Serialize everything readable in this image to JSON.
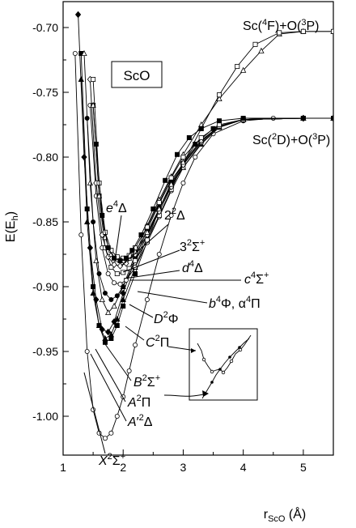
{
  "chart_data": {
    "type": "line",
    "title": "ScO",
    "xlabel": "r_ScO (Å)",
    "xlabel_main": "r",
    "xlabel_sub": "ScO",
    "xlabel_unit": " (Å)",
    "ylabel": "E(E_h)",
    "ylabel_main": "E(E",
    "ylabel_sub": "h",
    "ylabel_close": ")",
    "xlim": [
      1.0,
      5.5
    ],
    "ylim": [
      -1.03,
      -0.68
    ],
    "xticks": [
      1,
      2,
      3,
      4,
      5
    ],
    "yticks": [
      -1.0,
      -0.95,
      -0.9,
      -0.85,
      -0.8,
      -0.75,
      -0.7
    ],
    "xtick_labels": [
      "1",
      "2",
      "3",
      "4",
      "5"
    ],
    "ytick_labels": [
      "-1.00",
      "-0.95",
      "-0.90",
      "-0.85",
      "-0.80",
      "-0.75",
      "-0.70"
    ],
    "grid": false,
    "asymptote_labels": {
      "upper": "Sc(4F)+O(3P)",
      "lower": "Sc(2D)+O(3P)"
    },
    "state_labels": [
      "e4Δ",
      "22Δ",
      "32Σ+",
      "d4Δ",
      "c4Σ+",
      "b4Φ, a4Π",
      "D2Φ",
      "C2Π",
      "B2Σ+",
      "A2Π",
      "A′2Δ",
      "X2Σ+"
    ],
    "series": [
      {
        "name": "X2Σ+",
        "marker": "circle-open",
        "x": [
          1.2,
          1.3,
          1.4,
          1.5,
          1.6,
          1.7,
          1.8,
          1.9,
          2.0,
          2.1,
          2.2,
          2.4,
          2.6,
          2.8,
          3.0,
          3.2,
          3.5,
          4.0,
          4.5,
          5.0,
          5.5
        ],
        "y": [
          -0.72,
          -0.86,
          -0.95,
          -0.995,
          -1.013,
          -1.017,
          -1.013,
          -1.0,
          -0.985,
          -0.965,
          -0.945,
          -0.91,
          -0.875,
          -0.845,
          -0.82,
          -0.8,
          -0.782,
          -0.772,
          -0.77,
          -0.77,
          -0.77
        ]
      },
      {
        "name": "A′2Δ",
        "marker": "square-filled",
        "x": [
          1.3,
          1.4,
          1.5,
          1.6,
          1.7,
          1.8,
          1.9,
          2.0,
          2.2,
          2.4,
          2.6,
          2.8,
          3.0,
          3.2,
          3.5,
          4.0,
          5.0,
          5.5
        ],
        "y": [
          -0.72,
          -0.84,
          -0.9,
          -0.93,
          -0.943,
          -0.94,
          -0.93,
          -0.915,
          -0.89,
          -0.865,
          -0.84,
          -0.82,
          -0.805,
          -0.79,
          -0.778,
          -0.771,
          -0.77,
          -0.77
        ]
      },
      {
        "name": "A2Π",
        "marker": "triangle-filled",
        "x": [
          1.3,
          1.4,
          1.5,
          1.6,
          1.7,
          1.8,
          1.9,
          2.0,
          2.2,
          2.4,
          2.6,
          2.8,
          3.0,
          3.3,
          3.6,
          4.0,
          5.0,
          5.5
        ],
        "y": [
          -0.74,
          -0.85,
          -0.905,
          -0.93,
          -0.94,
          -0.937,
          -0.925,
          -0.91,
          -0.885,
          -0.862,
          -0.84,
          -0.822,
          -0.808,
          -0.79,
          -0.777,
          -0.771,
          -0.77,
          -0.77
        ]
      },
      {
        "name": "B2Σ+",
        "marker": "diamond-filled",
        "x": [
          1.25,
          1.35,
          1.45,
          1.55,
          1.65,
          1.75,
          1.85,
          2.0,
          2.2,
          2.4,
          2.6,
          2.8,
          3.0,
          3.3,
          3.6,
          4.0,
          5.0,
          5.5
        ],
        "y": [
          -0.69,
          -0.8,
          -0.87,
          -0.91,
          -0.933,
          -0.935,
          -0.927,
          -0.905,
          -0.878,
          -0.856,
          -0.836,
          -0.818,
          -0.805,
          -0.788,
          -0.776,
          -0.771,
          -0.77,
          -0.77
        ]
      },
      {
        "name": "C2Π",
        "marker": "triangle-open",
        "x": [
          1.35,
          1.45,
          1.55,
          1.65,
          1.75,
          1.85,
          2.0,
          2.2,
          2.4,
          2.6,
          2.8,
          3.0,
          3.3,
          3.6,
          4.0,
          4.3,
          4.6,
          5.0,
          5.5
        ],
        "y": [
          -0.72,
          -0.82,
          -0.88,
          -0.91,
          -0.92,
          -0.915,
          -0.9,
          -0.875,
          -0.853,
          -0.833,
          -0.815,
          -0.798,
          -0.775,
          -0.755,
          -0.733,
          -0.718,
          -0.705,
          -0.703,
          -0.703
        ]
      },
      {
        "name": "D2Φ",
        "marker": "circle-filled",
        "x": [
          1.4,
          1.5,
          1.6,
          1.7,
          1.8,
          1.9,
          2.0,
          2.2,
          2.4,
          2.6,
          2.8,
          3.0,
          3.3,
          3.6,
          4.0,
          5.0,
          5.5
        ],
        "y": [
          -0.77,
          -0.85,
          -0.89,
          -0.905,
          -0.91,
          -0.907,
          -0.9,
          -0.88,
          -0.86,
          -0.84,
          -0.822,
          -0.806,
          -0.788,
          -0.776,
          -0.771,
          -0.77,
          -0.77
        ]
      },
      {
        "name": "b4Φ, a4Π",
        "marker": "circle-open",
        "x": [
          1.45,
          1.55,
          1.65,
          1.75,
          1.85,
          1.95,
          2.05,
          2.2,
          2.4,
          2.6,
          2.8,
          3.0,
          3.3,
          3.6,
          4.0,
          5.0,
          5.5
        ],
        "y": [
          -0.76,
          -0.83,
          -0.87,
          -0.89,
          -0.897,
          -0.898,
          -0.895,
          -0.885,
          -0.866,
          -0.846,
          -0.826,
          -0.808,
          -0.789,
          -0.777,
          -0.771,
          -0.77,
          -0.77
        ]
      },
      {
        "name": "c4Σ+",
        "marker": "square-open",
        "x": [
          1.5,
          1.6,
          1.7,
          1.8,
          1.9,
          2.0,
          2.1,
          2.2,
          2.4,
          2.6,
          2.8,
          3.0,
          3.3,
          3.6,
          3.9,
          4.2,
          4.6,
          5.0,
          5.5
        ],
        "y": [
          -0.76,
          -0.83,
          -0.87,
          -0.885,
          -0.89,
          -0.889,
          -0.886,
          -0.88,
          -0.864,
          -0.845,
          -0.825,
          -0.805,
          -0.778,
          -0.752,
          -0.73,
          -0.713,
          -0.704,
          -0.703,
          -0.703
        ]
      },
      {
        "name": "d4Δ",
        "marker": "diamond-open",
        "x": [
          1.45,
          1.55,
          1.65,
          1.75,
          1.85,
          1.95,
          2.05,
          2.2,
          2.4,
          2.6,
          2.8,
          3.0,
          3.3,
          3.6,
          4.0,
          5.0,
          5.5
        ],
        "y": [
          -0.74,
          -0.82,
          -0.86,
          -0.877,
          -0.883,
          -0.884,
          -0.882,
          -0.875,
          -0.86,
          -0.842,
          -0.823,
          -0.806,
          -0.788,
          -0.776,
          -0.771,
          -0.77,
          -0.77
        ]
      },
      {
        "name": "32Σ+",
        "marker": "triangle-open",
        "x": [
          1.5,
          1.6,
          1.7,
          1.8,
          1.9,
          2.0,
          2.1,
          2.2,
          2.4,
          2.6,
          2.8,
          3.0,
          3.3,
          3.6,
          4.0,
          5.0,
          5.5
        ],
        "y": [
          -0.76,
          -0.83,
          -0.862,
          -0.875,
          -0.879,
          -0.88,
          -0.878,
          -0.873,
          -0.858,
          -0.84,
          -0.821,
          -0.804,
          -0.787,
          -0.776,
          -0.771,
          -0.77,
          -0.77
        ]
      },
      {
        "name": "22Δ",
        "marker": "square-open",
        "x": [
          1.5,
          1.6,
          1.7,
          1.8,
          1.9,
          2.0,
          2.1,
          2.2,
          2.4,
          2.6,
          2.8,
          3.0,
          3.3,
          3.6,
          4.0,
          5.0,
          5.5
        ],
        "y": [
          -0.74,
          -0.82,
          -0.858,
          -0.872,
          -0.877,
          -0.878,
          -0.876,
          -0.87,
          -0.854,
          -0.835,
          -0.816,
          -0.8,
          -0.785,
          -0.775,
          -0.771,
          -0.77,
          -0.77
        ]
      },
      {
        "name": "e4Δ",
        "marker": "square-filled",
        "x": [
          1.55,
          1.65,
          1.75,
          1.85,
          1.95,
          2.05,
          2.15,
          2.3,
          2.5,
          2.7,
          2.9,
          3.1,
          3.3,
          3.6,
          4.0,
          5.0,
          5.5
        ],
        "y": [
          -0.79,
          -0.845,
          -0.87,
          -0.878,
          -0.88,
          -0.878,
          -0.872,
          -0.86,
          -0.84,
          -0.818,
          -0.798,
          -0.785,
          -0.778,
          -0.772,
          -0.77,
          -0.77,
          -0.77
        ]
      }
    ]
  }
}
